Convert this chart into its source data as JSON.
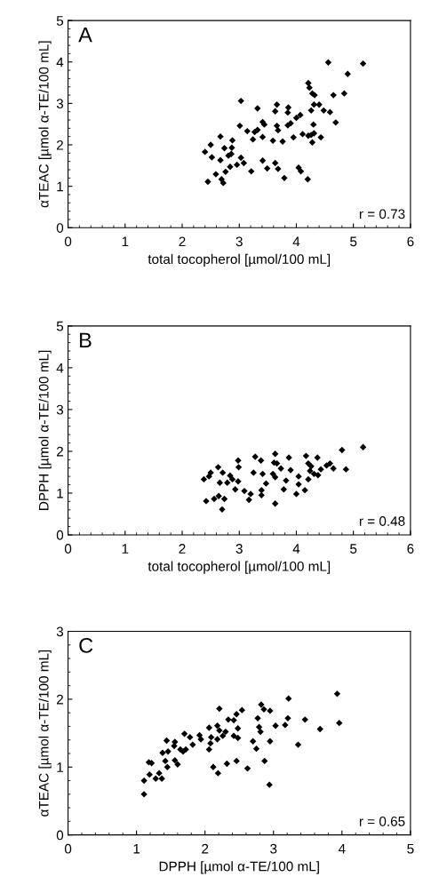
{
  "chart_data": [
    {
      "type": "scatter",
      "xlabel": "total tocopherol [µmol/100 mL]",
      "ylabel": "αTEAC [µmol α-TE/100 mL]",
      "annotations": [
        "A",
        "r = 0.73"
      ],
      "marker": "diamond",
      "grid": false,
      "xlim": [
        0,
        6
      ],
      "xticks": [
        0,
        1,
        2,
        3,
        4,
        5,
        6
      ],
      "ylim": [
        0,
        5
      ],
      "yticks": [
        0,
        1,
        2,
        3,
        4,
        5
      ],
      "series": [
        {
          "color": "#000000",
          "x": [
            4.56,
            5.17,
            4.9,
            4.21,
            4.23,
            4.28,
            4.32,
            4.65,
            4.84,
            3.03,
            3.32,
            3.66,
            3.63,
            3.86,
            3.85,
            4.31,
            4.4,
            4.26,
            4.48,
            4.59,
            4.69,
            4.07,
            4.0,
            3.9,
            3.85,
            3.41,
            3.44,
            3.01,
            3.66,
            3.68,
            3.14,
            3.27,
            3.32,
            4.3,
            4.31,
            4.26,
            4.43,
            4.21,
            4.11,
            3.95,
            3.41,
            3.24,
            3.59,
            3.76,
            4.28,
            2.67,
            2.88,
            2.5,
            2.4,
            2.74,
            2.87,
            2.52,
            2.67,
            2.81,
            2.86,
            3.03,
            3.08,
            2.96,
            2.84,
            2.76,
            2.59,
            2.69,
            2.72,
            2.45,
            3.21,
            3.41,
            3.49,
            3.63,
            3.68,
            3.79,
            4.04,
            4.08,
            4.2
          ],
          "values": [
            3.99,
            3.96,
            3.71,
            3.49,
            3.38,
            3.24,
            3.2,
            3.2,
            3.24,
            3.06,
            2.88,
            2.97,
            2.81,
            2.9,
            2.78,
            2.97,
            2.97,
            2.83,
            2.83,
            2.79,
            2.54,
            2.72,
            2.65,
            2.52,
            2.47,
            2.55,
            2.49,
            2.46,
            2.46,
            2.35,
            2.33,
            2.31,
            2.36,
            2.49,
            2.28,
            2.24,
            2.18,
            2.22,
            2.26,
            2.18,
            2.19,
            2.13,
            2.1,
            2.08,
            2.06,
            2.2,
            2.11,
            2.0,
            1.83,
            1.92,
            1.93,
            1.7,
            1.63,
            1.74,
            1.78,
            1.69,
            1.56,
            1.52,
            1.47,
            1.35,
            1.29,
            1.17,
            1.08,
            1.11,
            1.36,
            1.62,
            1.43,
            1.56,
            1.42,
            1.2,
            1.45,
            1.36,
            1.17
          ]
        }
      ]
    },
    {
      "type": "scatter",
      "xlabel": "total tocopherol [µmol/100 mL]",
      "ylabel": "DPPH [µmol α-TE/100 mL]",
      "annotations": [
        "B",
        "r = 0.48"
      ],
      "marker": "diamond",
      "grid": false,
      "xlim": [
        0,
        6
      ],
      "xticks": [
        0,
        1,
        2,
        3,
        4,
        5,
        6
      ],
      "ylim": [
        0,
        5
      ],
      "yticks": [
        0,
        1,
        2,
        3,
        4,
        5
      ],
      "series": [
        {
          "color": "#000000",
          "x": [
            5.17,
            4.8,
            4.87,
            4.65,
            4.59,
            4.53,
            4.43,
            4.38,
            4.37,
            4.17,
            4.21,
            4.26,
            4.24,
            4.31,
            4.21,
            4.15,
            4.04,
            4.04,
            4.0,
            3.87,
            3.9,
            3.82,
            3.78,
            3.73,
            3.63,
            3.61,
            3.66,
            3.59,
            3.63,
            3.47,
            3.39,
            3.39,
            3.63,
            3.28,
            3.38,
            3.41,
            3.25,
            3.2,
            3.17,
            3.09,
            2.93,
            2.98,
            2.99,
            2.84,
            2.79,
            2.88,
            2.98,
            2.71,
            2.63,
            2.66,
            2.5,
            2.47,
            2.38,
            2.42,
            2.56,
            2.64,
            2.74,
            2.7
          ],
          "values": [
            2.1,
            2.03,
            1.57,
            1.59,
            1.71,
            1.66,
            1.57,
            1.43,
            1.85,
            1.89,
            1.71,
            1.64,
            1.53,
            1.46,
            1.33,
            1.07,
            1.4,
            1.21,
            0.98,
            1.85,
            1.55,
            1.3,
            1.09,
            1.59,
            1.94,
            1.73,
            1.71,
            1.46,
            1.38,
            1.23,
            0.95,
            1.07,
            0.75,
            1.87,
            1.78,
            1.46,
            1.49,
            0.98,
            0.84,
            1.05,
            1.09,
            1.78,
            1.62,
            1.42,
            1.25,
            1.33,
            1.28,
            1.49,
            1.62,
            1.25,
            1.49,
            1.4,
            1.33,
            0.81,
            0.86,
            0.93,
            0.86,
            0.61
          ]
        }
      ]
    },
    {
      "type": "scatter",
      "xlabel": "DPPH [µmol α-TE/100 mL]",
      "ylabel": "αTEAC [µmol α-TE/100 mL]",
      "annotations": [
        "C",
        "r = 0.65"
      ],
      "marker": "diamond",
      "grid": false,
      "xlim": [
        0,
        5
      ],
      "xticks": [
        0,
        1,
        2,
        3,
        4,
        5
      ],
      "ylim": [
        0,
        3
      ],
      "yticks": [
        0,
        1,
        2,
        3
      ],
      "series": [
        {
          "color": "#000000",
          "x": [
            3.93,
            3.96,
            3.22,
            3.68,
            3.36,
            3.46,
            3.21,
            3.17,
            3.03,
            2.95,
            2.82,
            2.86,
            2.77,
            2.79,
            2.81,
            2.95,
            2.75,
            2.7,
            2.87,
            2.94,
            2.62,
            2.46,
            2.32,
            2.19,
            2.12,
            2.54,
            2.46,
            2.42,
            2.48,
            2.42,
            2.48,
            2.34,
            2.3,
            2.26,
            2.21,
            2.18,
            2.21,
            2.18,
            2.06,
            2.09,
            2.08,
            2.06,
            1.92,
            1.94,
            1.82,
            1.78,
            1.7,
            1.72,
            1.68,
            1.64,
            1.56,
            1.55,
            1.44,
            1.46,
            1.38,
            1.42,
            1.45,
            1.56,
            1.6,
            1.18,
            1.22,
            1.19,
            1.28,
            1.33,
            1.37,
            1.11,
            1.11
          ],
          "values": [
            2.08,
            1.65,
            2.01,
            1.56,
            1.33,
            1.7,
            1.72,
            1.62,
            1.61,
            1.83,
            1.92,
            1.85,
            1.72,
            1.59,
            1.52,
            1.38,
            1.27,
            1.38,
            1.09,
            0.74,
            0.98,
            1.09,
            1.05,
            0.91,
            1.0,
            1.84,
            1.78,
            1.69,
            1.57,
            1.46,
            1.43,
            1.7,
            1.52,
            1.46,
            1.86,
            1.61,
            1.54,
            1.41,
            1.58,
            1.44,
            1.35,
            1.26,
            1.47,
            1.41,
            1.33,
            1.44,
            1.49,
            1.26,
            1.23,
            1.26,
            1.37,
            1.31,
            1.39,
            1.23,
            1.21,
            1.09,
            1.0,
            1.1,
            1.04,
            1.07,
            1.06,
            0.89,
            0.83,
            0.91,
            0.83,
            0.8,
            0.6
          ]
        }
      ]
    }
  ]
}
